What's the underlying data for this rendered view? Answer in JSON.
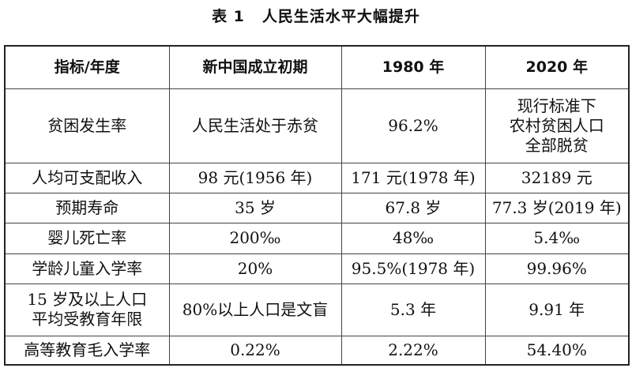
{
  "title": {
    "number": "表 1",
    "text": "人民生活水平大幅提升"
  },
  "table": {
    "headers": [
      "指标/年度",
      "新中国成立初期",
      "1980 年",
      "2020 年"
    ],
    "rows": [
      [
        "贫困发生率",
        "人民生活处于赤贫",
        "96.2%",
        "现行标准下\n农村贫困人口\n全部脱贫"
      ],
      [
        "人均可支配收入",
        "98 元(1956 年)",
        "171 元(1978 年)",
        "32189 元"
      ],
      [
        "预期寿命",
        "35 岁",
        "67.8 岁",
        "77.3 岁(2019 年)"
      ],
      [
        "婴儿死亡率",
        "200‰",
        "48‰",
        "5.4‰"
      ],
      [
        "学龄儿童入学率",
        "20%",
        "95.5%(1978 年)",
        "99.96%"
      ],
      [
        "15 岁及以上人口\n平均受教育年限",
        "80%以上人口是文盲",
        "5.3 年",
        "9.91 年"
      ],
      [
        "高等教育毛入学率",
        "0.22%",
        "2.22%",
        "54.40%"
      ]
    ]
  }
}
